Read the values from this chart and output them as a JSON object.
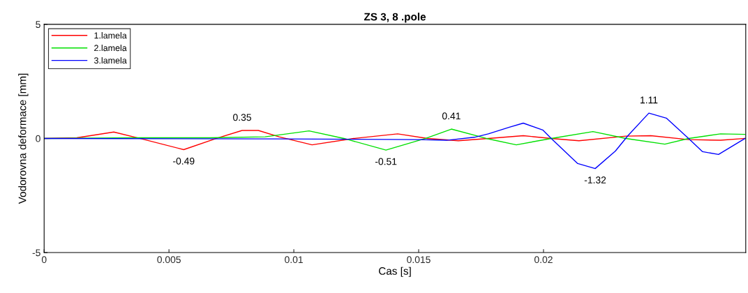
{
  "chart_data": {
    "type": "line",
    "title": "ZS 3, 8 .pole",
    "xlabel": "Cas [s]",
    "ylabel": "Vodorovna deformace [mm]",
    "xlim": [
      0,
      0.0281
    ],
    "xticks": [
      0,
      0.005,
      0.01,
      0.015,
      0.02
    ],
    "ylim": [
      -5,
      5
    ],
    "yticks": [
      -5,
      0,
      5
    ],
    "grid": false,
    "legend": "top left",
    "marker": "none",
    "line_style": "solid",
    "series": [
      {
        "name": "1.lamela",
        "color": "#ff0000",
        "x": [
          0,
          0.00131,
          0.00279,
          0.00383,
          0.00559,
          0.0069,
          0.00793,
          0.00858,
          0.00941,
          0.01073,
          0.0124,
          0.01416,
          0.01536,
          0.01659,
          0.01779,
          0.01919,
          0.02031,
          0.02142,
          0.0233,
          0.0243,
          0.02581,
          0.02709,
          0.02807
        ],
        "values": [
          0,
          0.03,
          0.28,
          0,
          -0.49,
          0,
          0.35,
          0.35,
          0.07,
          -0.28,
          0,
          0.2,
          0,
          -0.1,
          0,
          0.12,
          0,
          -0.1,
          0.1,
          0.12,
          -0.05,
          -0.08,
          0
        ]
      },
      {
        "name": "2.lamela",
        "color": "#00e000",
        "x": [
          0,
          0.00383,
          0.00662,
          0.00885,
          0.01061,
          0.01201,
          0.01369,
          0.01528,
          0.01631,
          0.01771,
          0.01891,
          0.02031,
          0.02198,
          0.0233,
          0.02486,
          0.02581,
          0.02709,
          0.02807
        ],
        "values": [
          0,
          0.03,
          0.03,
          0.07,
          0.33,
          0,
          -0.51,
          0,
          0.41,
          0,
          -0.28,
          0,
          0.3,
          0,
          -0.25,
          0,
          0.2,
          0.18
        ]
      },
      {
        "name": "3.lamela",
        "color": "#0000ff",
        "x": [
          0,
          0.00941,
          0.015,
          0.01612,
          0.01723,
          0.01779,
          0.01863,
          0.01919,
          0.01997,
          0.02031,
          0.02137,
          0.02207,
          0.02288,
          0.02338,
          0.02422,
          0.02492,
          0.02581,
          0.02637,
          0.02701,
          0.02807
        ],
        "values": [
          0,
          -0.02,
          -0.05,
          -0.08,
          0.05,
          0.2,
          0.49,
          0.67,
          0.37,
          0,
          -1.1,
          -1.32,
          -0.55,
          0.12,
          1.11,
          0.89,
          0,
          -0.58,
          -0.7,
          0
        ]
      }
    ],
    "annotations": [
      {
        "text": "-0.49",
        "x": 0.00559,
        "y": -0.49
      },
      {
        "text": "0.35",
        "x": 0.00793,
        "y": 0.35
      },
      {
        "text": "-0.51",
        "x": 0.01369,
        "y": -0.51
      },
      {
        "text": "0.41",
        "x": 0.01631,
        "y": 0.41
      },
      {
        "text": "-1.32",
        "x": 0.02207,
        "y": -1.32
      },
      {
        "text": "1.11",
        "x": 0.02422,
        "y": 1.11
      }
    ]
  }
}
